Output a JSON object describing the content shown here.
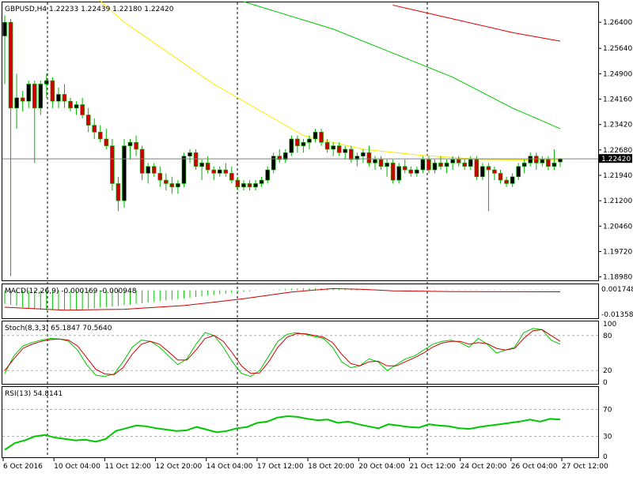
{
  "chart_data": [
    {
      "type": "candlestick",
      "title": "GBPUSD,H4  1.22233 1.22439 1.22180 1.22420",
      "symbol": "GBPUSD",
      "timeframe": "H4",
      "last_ohlc": [
        1.22233,
        1.22439,
        1.2218,
        1.2242
      ],
      "current_price_label": "1.22420",
      "y_ticks": [
        "1.26400",
        "1.25640",
        "1.24900",
        "1.24160",
        "1.23420",
        "1.22680",
        "1.21940",
        "1.21200",
        "1.20460",
        "1.19720",
        "1.18980"
      ],
      "ylim": [
        1.1888,
        1.2698
      ],
      "x_ticks": [
        "6 Oct 2016",
        "10 Oct 04:00",
        "11 Oct 12:00",
        "12 Oct 20:00",
        "14 Oct 04:00",
        "17 Oct 12:00",
        "18 Oct 20:00",
        "20 Oct 04:00",
        "21 Oct 12:00",
        "24 Oct 20:00",
        "26 Oct 04:00",
        "27 Oct 12:00"
      ],
      "candles": [
        [
          1.26,
          1.266,
          1.246,
          1.264
        ],
        [
          1.264,
          1.265,
          1.19,
          1.239
        ],
        [
          1.239,
          1.249,
          1.233,
          1.242
        ],
        [
          1.242,
          1.244,
          1.238,
          1.241
        ],
        [
          1.241,
          1.247,
          1.239,
          1.246
        ],
        [
          1.246,
          1.247,
          1.223,
          1.239
        ],
        [
          1.239,
          1.247,
          1.237,
          1.246
        ],
        [
          1.246,
          1.249,
          1.242,
          1.247
        ],
        [
          1.247,
          1.248,
          1.239,
          1.241
        ],
        [
          1.241,
          1.245,
          1.239,
          1.243
        ],
        [
          1.243,
          1.246,
          1.239,
          1.241
        ],
        [
          1.241,
          1.242,
          1.238,
          1.239
        ],
        [
          1.239,
          1.241,
          1.237,
          1.24
        ],
        [
          1.24,
          1.242,
          1.236,
          1.237
        ],
        [
          1.237,
          1.239,
          1.232,
          1.234
        ],
        [
          1.234,
          1.236,
          1.23,
          1.232
        ],
        [
          1.232,
          1.234,
          1.229,
          1.23
        ],
        [
          1.23,
          1.233,
          1.227,
          1.228
        ],
        [
          1.228,
          1.23,
          1.215,
          1.217
        ],
        [
          1.217,
          1.219,
          1.209,
          1.212
        ],
        [
          1.212,
          1.23,
          1.21,
          1.228
        ],
        [
          1.228,
          1.23,
          1.224,
          1.229
        ],
        [
          1.229,
          1.231,
          1.225,
          1.227
        ],
        [
          1.227,
          1.228,
          1.218,
          1.22
        ],
        [
          1.22,
          1.223,
          1.217,
          1.222
        ],
        [
          1.222,
          1.223,
          1.219,
          1.22
        ],
        [
          1.22,
          1.222,
          1.216,
          1.218
        ],
        [
          1.218,
          1.22,
          1.215,
          1.217
        ],
        [
          1.217,
          1.219,
          1.214,
          1.216
        ],
        [
          1.216,
          1.218,
          1.214,
          1.217
        ],
        [
          1.217,
          1.226,
          1.216,
          1.225
        ],
        [
          1.225,
          1.227,
          1.223,
          1.226
        ],
        [
          1.226,
          1.227,
          1.221,
          1.222
        ],
        [
          1.222,
          1.224,
          1.218,
          1.223
        ],
        [
          1.223,
          1.225,
          1.22,
          1.221
        ],
        [
          1.221,
          1.222,
          1.218,
          1.22
        ],
        [
          1.22,
          1.222,
          1.219,
          1.221
        ],
        [
          1.221,
          1.223,
          1.219,
          1.22
        ],
        [
          1.22,
          1.222,
          1.217,
          1.218
        ],
        [
          1.218,
          1.219,
          1.215,
          1.216
        ],
        [
          1.216,
          1.218,
          1.215,
          1.217
        ],
        [
          1.217,
          1.218,
          1.215,
          1.216
        ],
        [
          1.216,
          1.218,
          1.215,
          1.217
        ],
        [
          1.217,
          1.219,
          1.216,
          1.218
        ],
        [
          1.218,
          1.222,
          1.217,
          1.221
        ],
        [
          1.221,
          1.226,
          1.22,
          1.225
        ],
        [
          1.225,
          1.227,
          1.223,
          1.224
        ],
        [
          1.224,
          1.227,
          1.223,
          1.226
        ],
        [
          1.226,
          1.231,
          1.225,
          1.23
        ],
        [
          1.23,
          1.231,
          1.226,
          1.228
        ],
        [
          1.228,
          1.23,
          1.226,
          1.229
        ],
        [
          1.229,
          1.231,
          1.227,
          1.23
        ],
        [
          1.23,
          1.233,
          1.229,
          1.232
        ],
        [
          1.232,
          1.233,
          1.228,
          1.229
        ],
        [
          1.229,
          1.23,
          1.226,
          1.227
        ],
        [
          1.227,
          1.229,
          1.225,
          1.228
        ],
        [
          1.228,
          1.229,
          1.225,
          1.226
        ],
        [
          1.226,
          1.228,
          1.224,
          1.227
        ],
        [
          1.227,
          1.228,
          1.223,
          1.224
        ],
        [
          1.224,
          1.226,
          1.222,
          1.225
        ],
        [
          1.225,
          1.227,
          1.223,
          1.226
        ],
        [
          1.226,
          1.228,
          1.222,
          1.223
        ],
        [
          1.223,
          1.225,
          1.221,
          1.224
        ],
        [
          1.224,
          1.225,
          1.221,
          1.222
        ],
        [
          1.222,
          1.224,
          1.219,
          1.223
        ],
        [
          1.223,
          1.224,
          1.217,
          1.218
        ],
        [
          1.218,
          1.223,
          1.217,
          1.222
        ],
        [
          1.222,
          1.224,
          1.22,
          1.221
        ],
        [
          1.221,
          1.222,
          1.219,
          1.22
        ],
        [
          1.22,
          1.222,
          1.219,
          1.221
        ],
        [
          1.221,
          1.225,
          1.22,
          1.224
        ],
        [
          1.224,
          1.225,
          1.22,
          1.221
        ],
        [
          1.221,
          1.224,
          1.22,
          1.223
        ],
        [
          1.223,
          1.225,
          1.221,
          1.222
        ],
        [
          1.222,
          1.224,
          1.22,
          1.223
        ],
        [
          1.223,
          1.225,
          1.221,
          1.224
        ],
        [
          1.224,
          1.225,
          1.222,
          1.223
        ],
        [
          1.223,
          1.224,
          1.221,
          1.222
        ],
        [
          1.222,
          1.225,
          1.221,
          1.224
        ],
        [
          1.224,
          1.225,
          1.218,
          1.219
        ],
        [
          1.219,
          1.223,
          1.218,
          1.222
        ],
        [
          1.222,
          1.223,
          1.209,
          1.221
        ],
        [
          1.221,
          1.222,
          1.218,
          1.22
        ],
        [
          1.22,
          1.221,
          1.217,
          1.218
        ],
        [
          1.218,
          1.219,
          1.216,
          1.217
        ],
        [
          1.217,
          1.22,
          1.216,
          1.219
        ],
        [
          1.219,
          1.223,
          1.218,
          1.222
        ],
        [
          1.222,
          1.224,
          1.22,
          1.223
        ],
        [
          1.223,
          1.226,
          1.222,
          1.225
        ],
        [
          1.225,
          1.226,
          1.221,
          1.223
        ],
        [
          1.223,
          1.225,
          1.222,
          1.224
        ],
        [
          1.224,
          1.225,
          1.221,
          1.222
        ],
        [
          1.222,
          1.227,
          1.221,
          1.223
        ],
        [
          1.2233,
          1.2244,
          1.2218,
          1.2242
        ]
      ],
      "moving_averages": [
        {
          "color": "#ffea00",
          "points": [
            [
              0,
              1.295
            ],
            [
              20,
              1.264
            ],
            [
              35,
              1.246
            ],
            [
              50,
              1.231
            ],
            [
              60,
              1.227
            ],
            [
              70,
              1.2252
            ],
            [
              80,
              1.224
            ],
            [
              93,
              1.2238
            ]
          ]
        },
        {
          "color": "#00c800",
          "points": [
            [
              40,
              1.27
            ],
            [
              55,
              1.262
            ],
            [
              65,
              1.255
            ],
            [
              75,
              1.248
            ],
            [
              85,
              1.239
            ],
            [
              93,
              1.233
            ]
          ]
        },
        {
          "color": "#e00000",
          "points": [
            [
              65,
              1.269
            ],
            [
              75,
              1.265
            ],
            [
              85,
              1.261
            ],
            [
              93,
              1.2585
            ]
          ]
        }
      ],
      "grid": false
    },
    {
      "type": "bar",
      "title": "MACD(12,26,9) -0.000169 -0.000948",
      "indicator": "MACD(12,26,9)",
      "y_ticks": [
        "0.001748",
        "-0.013585"
      ],
      "ylim": [
        -0.0165,
        0.0035
      ],
      "histogram": [
        -0.008,
        -0.0085,
        -0.0092,
        -0.01,
        -0.0108,
        -0.0112,
        -0.0115,
        -0.0117,
        -0.0118,
        -0.0118,
        -0.0117,
        -0.0116,
        -0.0115,
        -0.0113,
        -0.011,
        -0.0107,
        -0.0104,
        -0.01,
        -0.0096,
        -0.0092,
        -0.0088,
        -0.0084,
        -0.008,
        -0.0076,
        -0.0072,
        -0.0068,
        -0.0064,
        -0.006,
        -0.0056,
        -0.0052,
        -0.0048,
        -0.0044,
        -0.004,
        -0.0036,
        -0.0032,
        -0.0028,
        -0.0024,
        -0.002,
        -0.0016,
        -0.0012,
        -0.0009,
        -0.0006,
        -0.0003,
        -0.0001,
        0.0001,
        0.0003,
        0.0005,
        0.0007,
        0.0009,
        0.001,
        0.0011,
        0.0012,
        0.0012,
        0.0012,
        0.0011,
        0.001,
        0.0009,
        0.0008,
        0.0007,
        0.0006,
        0.0005,
        0.0004,
        0.0003,
        0.0002,
        0.0001,
        0.0,
        -0.0001,
        -0.0001,
        -0.0002,
        -0.0002,
        -0.0002,
        -0.0002,
        -0.0002,
        -0.0002,
        -0.0002,
        -0.0002,
        -0.0002,
        -0.0002,
        -0.0002,
        -0.0002,
        -0.0002,
        -0.0002,
        -0.0002,
        -0.0002,
        -0.0002,
        -0.0002,
        -0.0002,
        -0.0002,
        -0.0002,
        -0.0002,
        -0.0002,
        -0.0002,
        -0.0002,
        -0.0002
      ],
      "signal": [
        [
          0,
          -0.01
        ],
        [
          10,
          -0.0117
        ],
        [
          20,
          -0.0112
        ],
        [
          30,
          -0.009
        ],
        [
          40,
          -0.005
        ],
        [
          48,
          -0.001
        ],
        [
          55,
          0.001
        ],
        [
          60,
          0.0005
        ],
        [
          65,
          -0.0003
        ],
        [
          75,
          -0.0008
        ],
        [
          93,
          -0.0009
        ]
      ],
      "colors": {
        "histogram": "#00c800",
        "signal": "#cc0000"
      }
    },
    {
      "type": "line",
      "title": "Stoch(8,3,3) 65.1847 70.5640",
      "indicator": "Stoch(8,3,3)",
      "y_ticks": [
        "100",
        "80",
        "20",
        "0"
      ],
      "ylim": [
        0,
        100
      ],
      "levels": [
        80,
        20
      ],
      "series": [
        {
          "color": "#00c800",
          "values": [
            15,
            45,
            62,
            68,
            72,
            75,
            74,
            70,
            55,
            30,
            12,
            10,
            14,
            35,
            60,
            72,
            70,
            60,
            45,
            30,
            40,
            65,
            85,
            80,
            60,
            35,
            15,
            10,
            20,
            45,
            70,
            82,
            85,
            82,
            78,
            75,
            60,
            35,
            25,
            28,
            40,
            35,
            20,
            30,
            40,
            45,
            55,
            65,
            70,
            72,
            68,
            60,
            75,
            65,
            50,
            55,
            60,
            85,
            92,
            90,
            72,
            65
          ]
        },
        {
          "color": "#cc0000",
          "values": [
            20,
            40,
            58,
            65,
            70,
            73,
            74,
            72,
            62,
            42,
            22,
            14,
            13,
            25,
            48,
            65,
            70,
            65,
            52,
            38,
            38,
            55,
            75,
            80,
            70,
            50,
            28,
            15,
            16,
            35,
            60,
            77,
            83,
            83,
            80,
            77,
            68,
            48,
            32,
            28,
            35,
            36,
            28,
            28,
            35,
            42,
            50,
            60,
            67,
            70,
            70,
            65,
            68,
            66,
            58,
            55,
            58,
            75,
            88,
            90,
            80,
            70
          ]
        }
      ]
    },
    {
      "type": "line",
      "title": "RSI(13) 54.8141",
      "indicator": "RSI(13)",
      "y_ticks": [
        "70",
        "30",
        "0"
      ],
      "ylim": [
        0,
        100
      ],
      "levels": [
        70,
        30
      ],
      "series": [
        {
          "color": "#00c800",
          "values": [
            10,
            20,
            24,
            30,
            32,
            28,
            26,
            24,
            25,
            22,
            26,
            38,
            42,
            46,
            45,
            42,
            40,
            38,
            39,
            44,
            40,
            36,
            38,
            42,
            44,
            50,
            52,
            58,
            60,
            59,
            56,
            54,
            55,
            50,
            52,
            48,
            45,
            42,
            48,
            46,
            44,
            43,
            48,
            46,
            45,
            42,
            41,
            44,
            46,
            48,
            50,
            52,
            55,
            52,
            56,
            55
          ]
        }
      ]
    }
  ]
}
